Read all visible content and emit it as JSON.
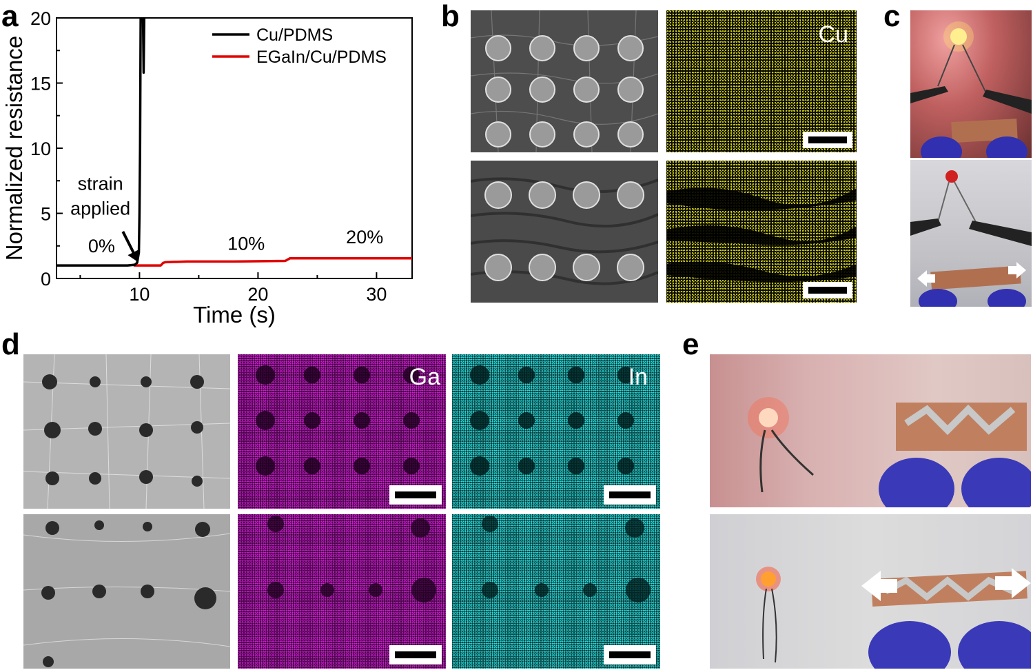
{
  "panels": {
    "a": "a",
    "b": "b",
    "c": "c",
    "d": "d",
    "e": "e"
  },
  "chart_data": {
    "type": "line",
    "xlabel": "Time (s)",
    "ylabel": "Normalized resistance",
    "xlim": [
      3,
      33
    ],
    "ylim": [
      0,
      20
    ],
    "xticks": [
      10,
      20,
      30
    ],
    "yticks": [
      0,
      5,
      10,
      15,
      20
    ],
    "legend_position": "top-right",
    "series": [
      {
        "name": "Cu/PDMS",
        "color": "#000000",
        "x": [
          3,
          6,
          9,
          9.6,
          9.8,
          9.95,
          10.0,
          10.05,
          10.1,
          10.15,
          10.2,
          10.25,
          10.3,
          10.35,
          10.4
        ],
        "y": [
          1.0,
          1.0,
          1.0,
          1.05,
          1.2,
          2.0,
          5.0,
          10.0,
          20.0,
          20.0,
          20.0,
          20.0,
          20.0,
          15.8,
          20.0
        ]
      },
      {
        "name": "EGaIn/Cu/PDMS",
        "color": "#e00000",
        "x": [
          9.5,
          10,
          11.8,
          12.0,
          12.2,
          14,
          18,
          22.3,
          22.7,
          23.0,
          26,
          30,
          33
        ],
        "y": [
          1.0,
          1.0,
          1.0,
          1.2,
          1.25,
          1.3,
          1.3,
          1.35,
          1.55,
          1.55,
          1.55,
          1.55,
          1.55
        ]
      }
    ],
    "annotations": [
      {
        "text": "strain",
        "x": 6.7,
        "y": 6.8
      },
      {
        "text": "applied",
        "x": 6.7,
        "y": 4.9
      },
      {
        "text": "0%",
        "x": 6.8,
        "y": 2.0
      },
      {
        "text": "10%",
        "x": 19,
        "y": 2.2
      },
      {
        "text": "20%",
        "x": 29,
        "y": 2.7
      }
    ],
    "arrow": {
      "from": [
        8.6,
        3.6
      ],
      "to": [
        9.9,
        1.25
      ]
    }
  },
  "labels": {
    "cu": "Cu",
    "ga": "Ga",
    "in": "In"
  },
  "colors": {
    "cu_map": "#d8d820",
    "ga_map": "#d020d0",
    "in_map": "#30d8d8",
    "egain_line": "#e00000"
  }
}
